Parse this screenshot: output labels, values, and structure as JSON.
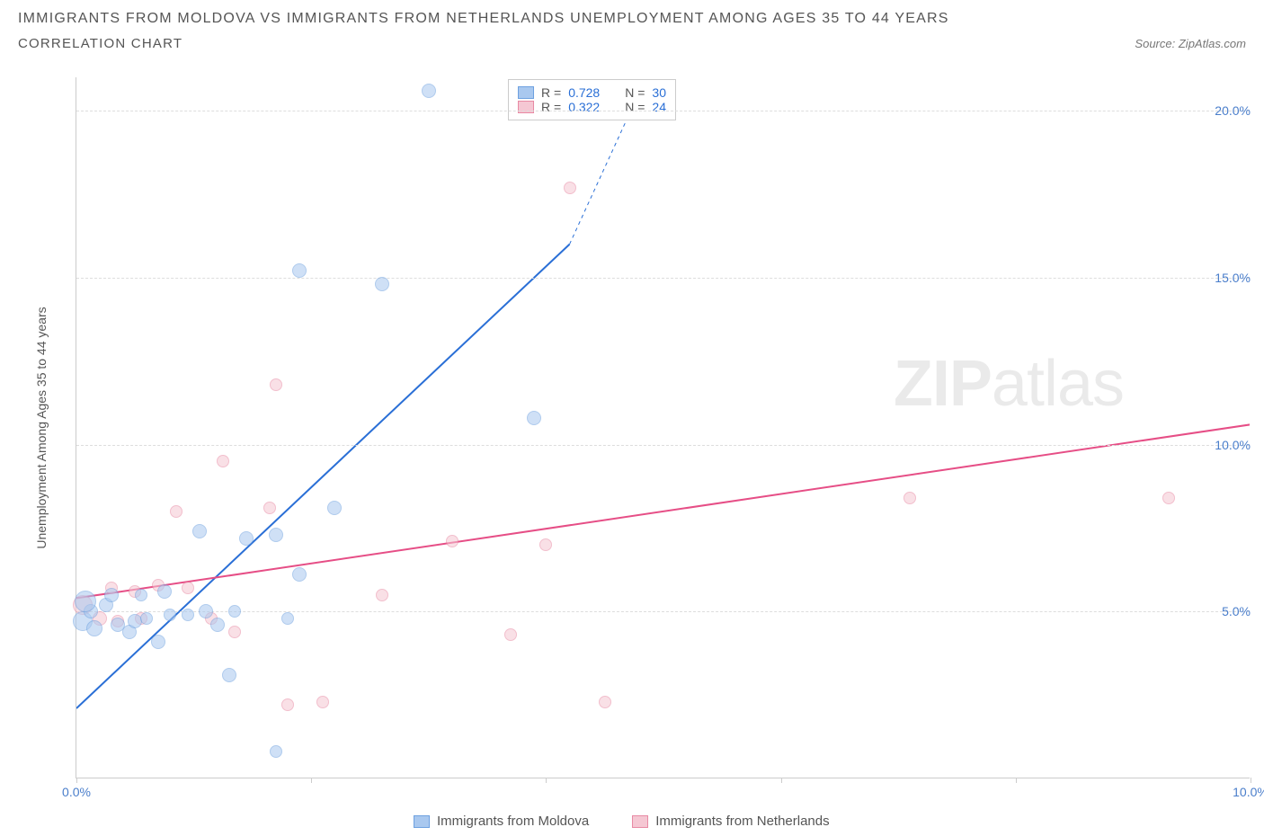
{
  "header": {
    "title": "IMMIGRANTS FROM MOLDOVA VS IMMIGRANTS FROM NETHERLANDS UNEMPLOYMENT AMONG AGES 35 TO 44 YEARS",
    "subtitle": "CORRELATION CHART",
    "source_label": "Source:",
    "source_value": "ZipAtlas.com"
  },
  "chart": {
    "type": "scatter",
    "background_color": "#ffffff",
    "grid_color": "#dddddd",
    "axis_color": "#cccccc",
    "xlim": [
      0,
      10
    ],
    "ylim": [
      0,
      21
    ],
    "x_ticks": [
      0,
      2,
      4,
      6,
      8,
      10
    ],
    "x_tick_labels": [
      "0.0%",
      "",
      "",
      "",
      "",
      "10.0%"
    ],
    "y_ticks": [
      5,
      10,
      15,
      20
    ],
    "y_tick_labels": [
      "5.0%",
      "10.0%",
      "15.0%",
      "20.0%"
    ],
    "y_axis_label": "Unemployment Among Ages 35 to 44 years",
    "label_fontsize": 14,
    "tick_color": "#4a7ecb",
    "series": {
      "moldova": {
        "label": "Immigrants from Moldova",
        "fill_color": "#a9c8ef",
        "stroke_color": "#6ea1e0",
        "fill_opacity": 0.55,
        "marker_radius_range": [
          6,
          12
        ],
        "R": 0.728,
        "N": 30,
        "trend": {
          "x1": 0.0,
          "y1": 2.1,
          "x2": 4.2,
          "y2": 16.0,
          "dash_to_x": 4.8,
          "dash_to_y": 20.6,
          "color": "#2a6fd6",
          "width": 2
        },
        "points": [
          {
            "x": 0.05,
            "y": 4.7,
            "r": 11
          },
          {
            "x": 0.15,
            "y": 4.5,
            "r": 9
          },
          {
            "x": 0.12,
            "y": 5.0,
            "r": 8
          },
          {
            "x": 0.25,
            "y": 5.2,
            "r": 8
          },
          {
            "x": 0.3,
            "y": 5.5,
            "r": 8
          },
          {
            "x": 0.35,
            "y": 4.6,
            "r": 8
          },
          {
            "x": 0.45,
            "y": 4.4,
            "r": 8
          },
          {
            "x": 0.5,
            "y": 4.7,
            "r": 8
          },
          {
            "x": 0.55,
            "y": 5.5,
            "r": 7
          },
          {
            "x": 0.6,
            "y": 4.8,
            "r": 7
          },
          {
            "x": 0.7,
            "y": 4.1,
            "r": 8
          },
          {
            "x": 0.75,
            "y": 5.6,
            "r": 8
          },
          {
            "x": 0.8,
            "y": 4.9,
            "r": 7
          },
          {
            "x": 0.95,
            "y": 4.9,
            "r": 7
          },
          {
            "x": 1.05,
            "y": 7.4,
            "r": 8
          },
          {
            "x": 1.1,
            "y": 5.0,
            "r": 8
          },
          {
            "x": 1.2,
            "y": 4.6,
            "r": 8
          },
          {
            "x": 1.3,
            "y": 3.1,
            "r": 8
          },
          {
            "x": 1.35,
            "y": 5.0,
            "r": 7
          },
          {
            "x": 1.45,
            "y": 7.2,
            "r": 8
          },
          {
            "x": 1.7,
            "y": 7.3,
            "r": 8
          },
          {
            "x": 1.7,
            "y": 0.8,
            "r": 7
          },
          {
            "x": 1.9,
            "y": 6.1,
            "r": 8
          },
          {
            "x": 1.8,
            "y": 4.8,
            "r": 7
          },
          {
            "x": 2.2,
            "y": 8.1,
            "r": 8
          },
          {
            "x": 1.9,
            "y": 15.2,
            "r": 8
          },
          {
            "x": 2.6,
            "y": 14.8,
            "r": 8
          },
          {
            "x": 3.0,
            "y": 20.6,
            "r": 8
          },
          {
            "x": 3.9,
            "y": 10.8,
            "r": 8
          },
          {
            "x": 0.08,
            "y": 5.3,
            "r": 12
          }
        ]
      },
      "netherlands": {
        "label": "Immigrants from Netherlands",
        "fill_color": "#f5c7d3",
        "stroke_color": "#e88aa4",
        "fill_opacity": 0.55,
        "marker_radius_range": [
          6,
          11
        ],
        "R": 0.322,
        "N": 24,
        "trend": {
          "x1": 0.0,
          "y1": 5.4,
          "x2": 10.0,
          "y2": 10.6,
          "color": "#e64e86",
          "width": 2
        },
        "points": [
          {
            "x": 0.05,
            "y": 5.2,
            "r": 11
          },
          {
            "x": 0.2,
            "y": 4.8,
            "r": 8
          },
          {
            "x": 0.3,
            "y": 5.7,
            "r": 7
          },
          {
            "x": 0.35,
            "y": 4.7,
            "r": 7
          },
          {
            "x": 0.5,
            "y": 5.6,
            "r": 7
          },
          {
            "x": 0.55,
            "y": 4.8,
            "r": 7
          },
          {
            "x": 0.7,
            "y": 5.8,
            "r": 7
          },
          {
            "x": 0.85,
            "y": 8.0,
            "r": 7
          },
          {
            "x": 0.95,
            "y": 5.7,
            "r": 7
          },
          {
            "x": 1.15,
            "y": 4.8,
            "r": 7
          },
          {
            "x": 1.25,
            "y": 9.5,
            "r": 7
          },
          {
            "x": 1.35,
            "y": 4.4,
            "r": 7
          },
          {
            "x": 1.65,
            "y": 8.1,
            "r": 7
          },
          {
            "x": 1.7,
            "y": 11.8,
            "r": 7
          },
          {
            "x": 1.8,
            "y": 2.2,
            "r": 7
          },
          {
            "x": 2.1,
            "y": 2.3,
            "r": 7
          },
          {
            "x": 2.6,
            "y": 5.5,
            "r": 7
          },
          {
            "x": 3.2,
            "y": 7.1,
            "r": 7
          },
          {
            "x": 3.7,
            "y": 4.3,
            "r": 7
          },
          {
            "x": 4.0,
            "y": 7.0,
            "r": 7
          },
          {
            "x": 4.2,
            "y": 17.7,
            "r": 7
          },
          {
            "x": 4.5,
            "y": 2.3,
            "r": 7
          },
          {
            "x": 7.1,
            "y": 8.4,
            "r": 7
          },
          {
            "x": 9.3,
            "y": 8.4,
            "r": 7
          }
        ]
      }
    },
    "correlation_legend": {
      "rows": [
        {
          "swatch_fill": "#a9c8ef",
          "swatch_stroke": "#6ea1e0",
          "R_label": "R =",
          "R": "0.728",
          "N_label": "N =",
          "N": "30"
        },
        {
          "swatch_fill": "#f5c7d3",
          "swatch_stroke": "#e88aa4",
          "R_label": "R =",
          "R": "0.322",
          "N_label": "N =",
          "N": "24"
        }
      ]
    },
    "watermark": {
      "part1": "ZIP",
      "part2": "atlas"
    }
  }
}
